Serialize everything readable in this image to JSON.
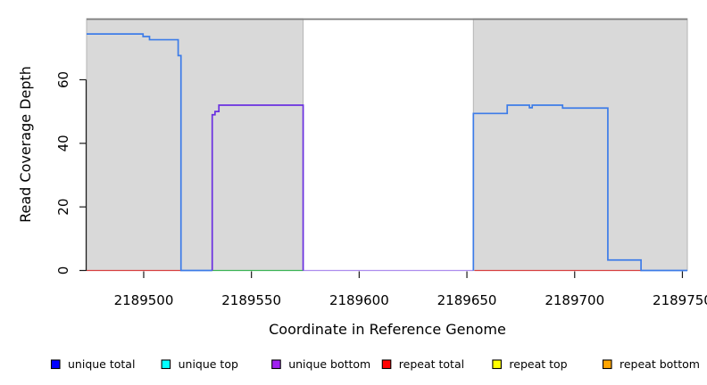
{
  "figure": {
    "background": "#ffffff"
  },
  "chart_data": {
    "type": "line",
    "title": "",
    "xlabel": "Coordinate in Reference Genome",
    "ylabel": "Read Coverage Depth",
    "x_range": [
      2189473.5,
      2189752.3
    ],
    "y_range": [
      0,
      79.2
    ],
    "grid": false,
    "x_ticks": [
      {
        "value": 2189500,
        "label": "2189500"
      },
      {
        "value": 2189550,
        "label": "2189550"
      },
      {
        "value": 2189600,
        "label": "2189600"
      },
      {
        "value": 2189650,
        "label": "2189650"
      },
      {
        "value": 2189700,
        "label": "2189700"
      },
      {
        "value": 2189750,
        "label": "2189750"
      }
    ],
    "y_ticks": [
      {
        "value": 0,
        "label": "0"
      },
      {
        "value": 20,
        "label": "20"
      },
      {
        "value": 40,
        "label": "40"
      },
      {
        "value": 60,
        "label": "60"
      }
    ],
    "colors": {
      "repeat_region_fill": "#d9d9d9",
      "repeat_region_border": "#b5b5b5",
      "frame_top": "#7e7e7e",
      "axis": "#1a1a1a",
      "legend_swatch_border": "#000000"
    },
    "repeat_regions": [
      {
        "name": "repeat-region-left",
        "x0": 2189473.5,
        "x1": 2189574
      },
      {
        "name": "repeat-region-right",
        "x0": 2189653,
        "x1": 2189752.3
      }
    ],
    "series": [
      {
        "name": "repeat-total-left",
        "color": "#dd2b2b",
        "width": 1.3,
        "opacity": 0.85,
        "points": [
          [
            2189473.5,
            0
          ],
          [
            2189517.3,
            0
          ]
        ]
      },
      {
        "name": "repeat-strand-baseline",
        "color": "#2fb44a",
        "width": 1.3,
        "opacity": 0.9,
        "points": [
          [
            2189531.8,
            0
          ],
          [
            2189574,
            0
          ]
        ]
      },
      {
        "name": "unique-total-left",
        "color": "#3d7ce8",
        "width": 1.7,
        "opacity": 1,
        "points": [
          [
            2189473.5,
            74.4
          ],
          [
            2189499.7,
            74.4
          ],
          [
            2189499.7,
            73.6
          ],
          [
            2189502.7,
            73.6
          ],
          [
            2189502.7,
            72.6
          ],
          [
            2189516,
            72.6
          ],
          [
            2189516,
            67.6
          ],
          [
            2189517.3,
            67.6
          ],
          [
            2189517.3,
            0
          ],
          [
            2189531.8,
            0
          ]
        ]
      },
      {
        "name": "unique-bottom-block",
        "color": "#6a30e0",
        "width": 1.7,
        "opacity": 1,
        "points": [
          [
            2189531.8,
            0
          ],
          [
            2189531.8,
            49
          ],
          [
            2189533.1,
            49
          ],
          [
            2189533.1,
            50
          ],
          [
            2189534.9,
            50
          ],
          [
            2189534.9,
            52
          ],
          [
            2189574,
            52
          ],
          [
            2189574,
            0
          ]
        ]
      },
      {
        "name": "unique-bottom-baseline",
        "color": "#6a30e0",
        "width": 1.2,
        "opacity": 0.55,
        "points": [
          [
            2189574,
            0
          ],
          [
            2189653,
            0
          ]
        ]
      },
      {
        "name": "repeat-total-right",
        "color": "#dd2b2b",
        "width": 1.3,
        "opacity": 0.85,
        "points": [
          [
            2189653.5,
            0
          ],
          [
            2189731,
            0
          ]
        ]
      },
      {
        "name": "unique-total-right",
        "color": "#3d7ce8",
        "width": 1.7,
        "opacity": 1,
        "points": [
          [
            2189653,
            0
          ],
          [
            2189653,
            49.4
          ],
          [
            2189668.7,
            49.4
          ],
          [
            2189668.7,
            52
          ],
          [
            2189679,
            52
          ],
          [
            2189679,
            51.2
          ],
          [
            2189680.3,
            51.2
          ],
          [
            2189680.3,
            52
          ],
          [
            2189694.4,
            52
          ],
          [
            2189694.4,
            51.1
          ],
          [
            2189715.4,
            51.1
          ],
          [
            2189715.4,
            3.3
          ],
          [
            2189730.8,
            3.3
          ],
          [
            2189730.8,
            0
          ],
          [
            2189752.3,
            0
          ]
        ]
      }
    ],
    "legend": {
      "position": "bottom",
      "items": [
        {
          "label": "unique total",
          "color": "#0000ff"
        },
        {
          "label": "unique top",
          "color": "#00ffff"
        },
        {
          "label": "unique bottom",
          "color": "#a020f0"
        },
        {
          "label": "repeat total",
          "color": "#ff0000"
        },
        {
          "label": "repeat top",
          "color": "#ffff00"
        },
        {
          "label": "repeat bottom",
          "color": "#ffa500"
        }
      ]
    }
  }
}
